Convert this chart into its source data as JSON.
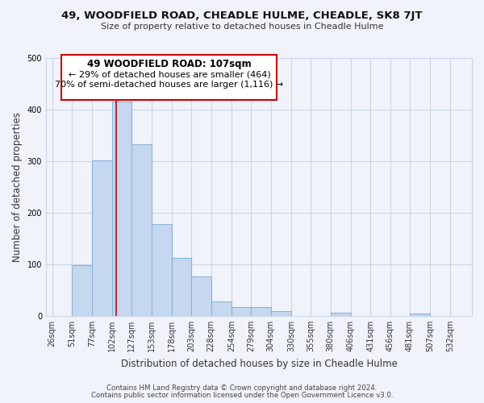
{
  "title": "49, WOODFIELD ROAD, CHEADLE HULME, CHEADLE, SK8 7JT",
  "subtitle": "Size of property relative to detached houses in Cheadle Hulme",
  "xlabel": "Distribution of detached houses by size in Cheadle Hulme",
  "ylabel": "Number of detached properties",
  "bar_left_edges": [
    26,
    51,
    77,
    102,
    127,
    153,
    178,
    203,
    228,
    254,
    279,
    304,
    330,
    355,
    380,
    406,
    431,
    456,
    481,
    507
  ],
  "bar_widths": [
    25,
    26,
    25,
    25,
    26,
    25,
    25,
    25,
    26,
    25,
    25,
    26,
    25,
    25,
    26,
    25,
    25,
    25,
    26,
    25
  ],
  "bar_heights": [
    0,
    98,
    301,
    415,
    332,
    177,
    112,
    77,
    28,
    17,
    17,
    9,
    0,
    0,
    6,
    0,
    0,
    0,
    4,
    0
  ],
  "xtick_labels": [
    "26sqm",
    "51sqm",
    "77sqm",
    "102sqm",
    "127sqm",
    "153sqm",
    "178sqm",
    "203sqm",
    "228sqm",
    "254sqm",
    "279sqm",
    "304sqm",
    "330sqm",
    "355sqm",
    "380sqm",
    "406sqm",
    "431sqm",
    "456sqm",
    "481sqm",
    "507sqm",
    "532sqm"
  ],
  "xtick_positions": [
    26,
    51,
    77,
    102,
    127,
    153,
    178,
    203,
    228,
    254,
    279,
    304,
    330,
    355,
    380,
    406,
    431,
    456,
    481,
    507,
    532
  ],
  "ylim": [
    0,
    500
  ],
  "xlim": [
    18,
    560
  ],
  "bar_color": "#c5d8f0",
  "bar_edge_color": "#8ab4d8",
  "marker_x": 107,
  "marker_color": "#cc0000",
  "annotation_title": "49 WOODFIELD ROAD: 107sqm",
  "annotation_line1": "← 29% of detached houses are smaller (464)",
  "annotation_line2": "70% of semi-detached houses are larger (1,116) →",
  "footer1": "Contains HM Land Registry data © Crown copyright and database right 2024.",
  "footer2": "Contains public sector information licensed under the Open Government Licence v3.0.",
  "bg_color": "#f0f4fa",
  "grid_color": "#c8d4e8"
}
